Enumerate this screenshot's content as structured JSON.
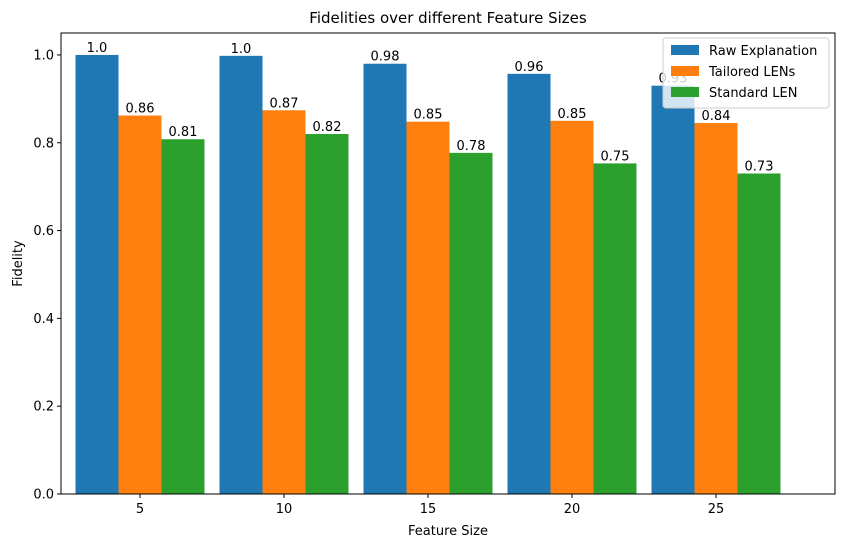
{
  "chart_data": {
    "type": "bar",
    "title": "Fidelities over different Feature Sizes",
    "xlabel": "Feature Size",
    "ylabel": "Fidelity",
    "categories": [
      "5",
      "10",
      "15",
      "20",
      "25"
    ],
    "ylim": [
      0,
      1.05
    ],
    "yticks": [
      "0.0",
      "0.2",
      "0.4",
      "0.6",
      "0.8",
      "1.0"
    ],
    "legend_position": "top-right",
    "grid": false,
    "series": [
      {
        "name": "Raw Explanation",
        "color": "#1f77b4",
        "values": [
          1.0,
          0.998,
          0.98,
          0.957,
          0.93
        ],
        "labels": [
          "1.0",
          "1.0",
          "0.98",
          "0.96",
          "0.93"
        ]
      },
      {
        "name": "Tailored LENs",
        "color": "#ff7f0e",
        "values": [
          0.862,
          0.874,
          0.848,
          0.85,
          0.845
        ],
        "labels": [
          "0.86",
          "0.87",
          "0.85",
          "0.85",
          "0.84"
        ]
      },
      {
        "name": "Standard LEN",
        "color": "#2ca02c",
        "values": [
          0.808,
          0.82,
          0.777,
          0.753,
          0.73
        ],
        "labels": [
          "0.81",
          "0.82",
          "0.78",
          "0.75",
          "0.73"
        ]
      }
    ]
  }
}
